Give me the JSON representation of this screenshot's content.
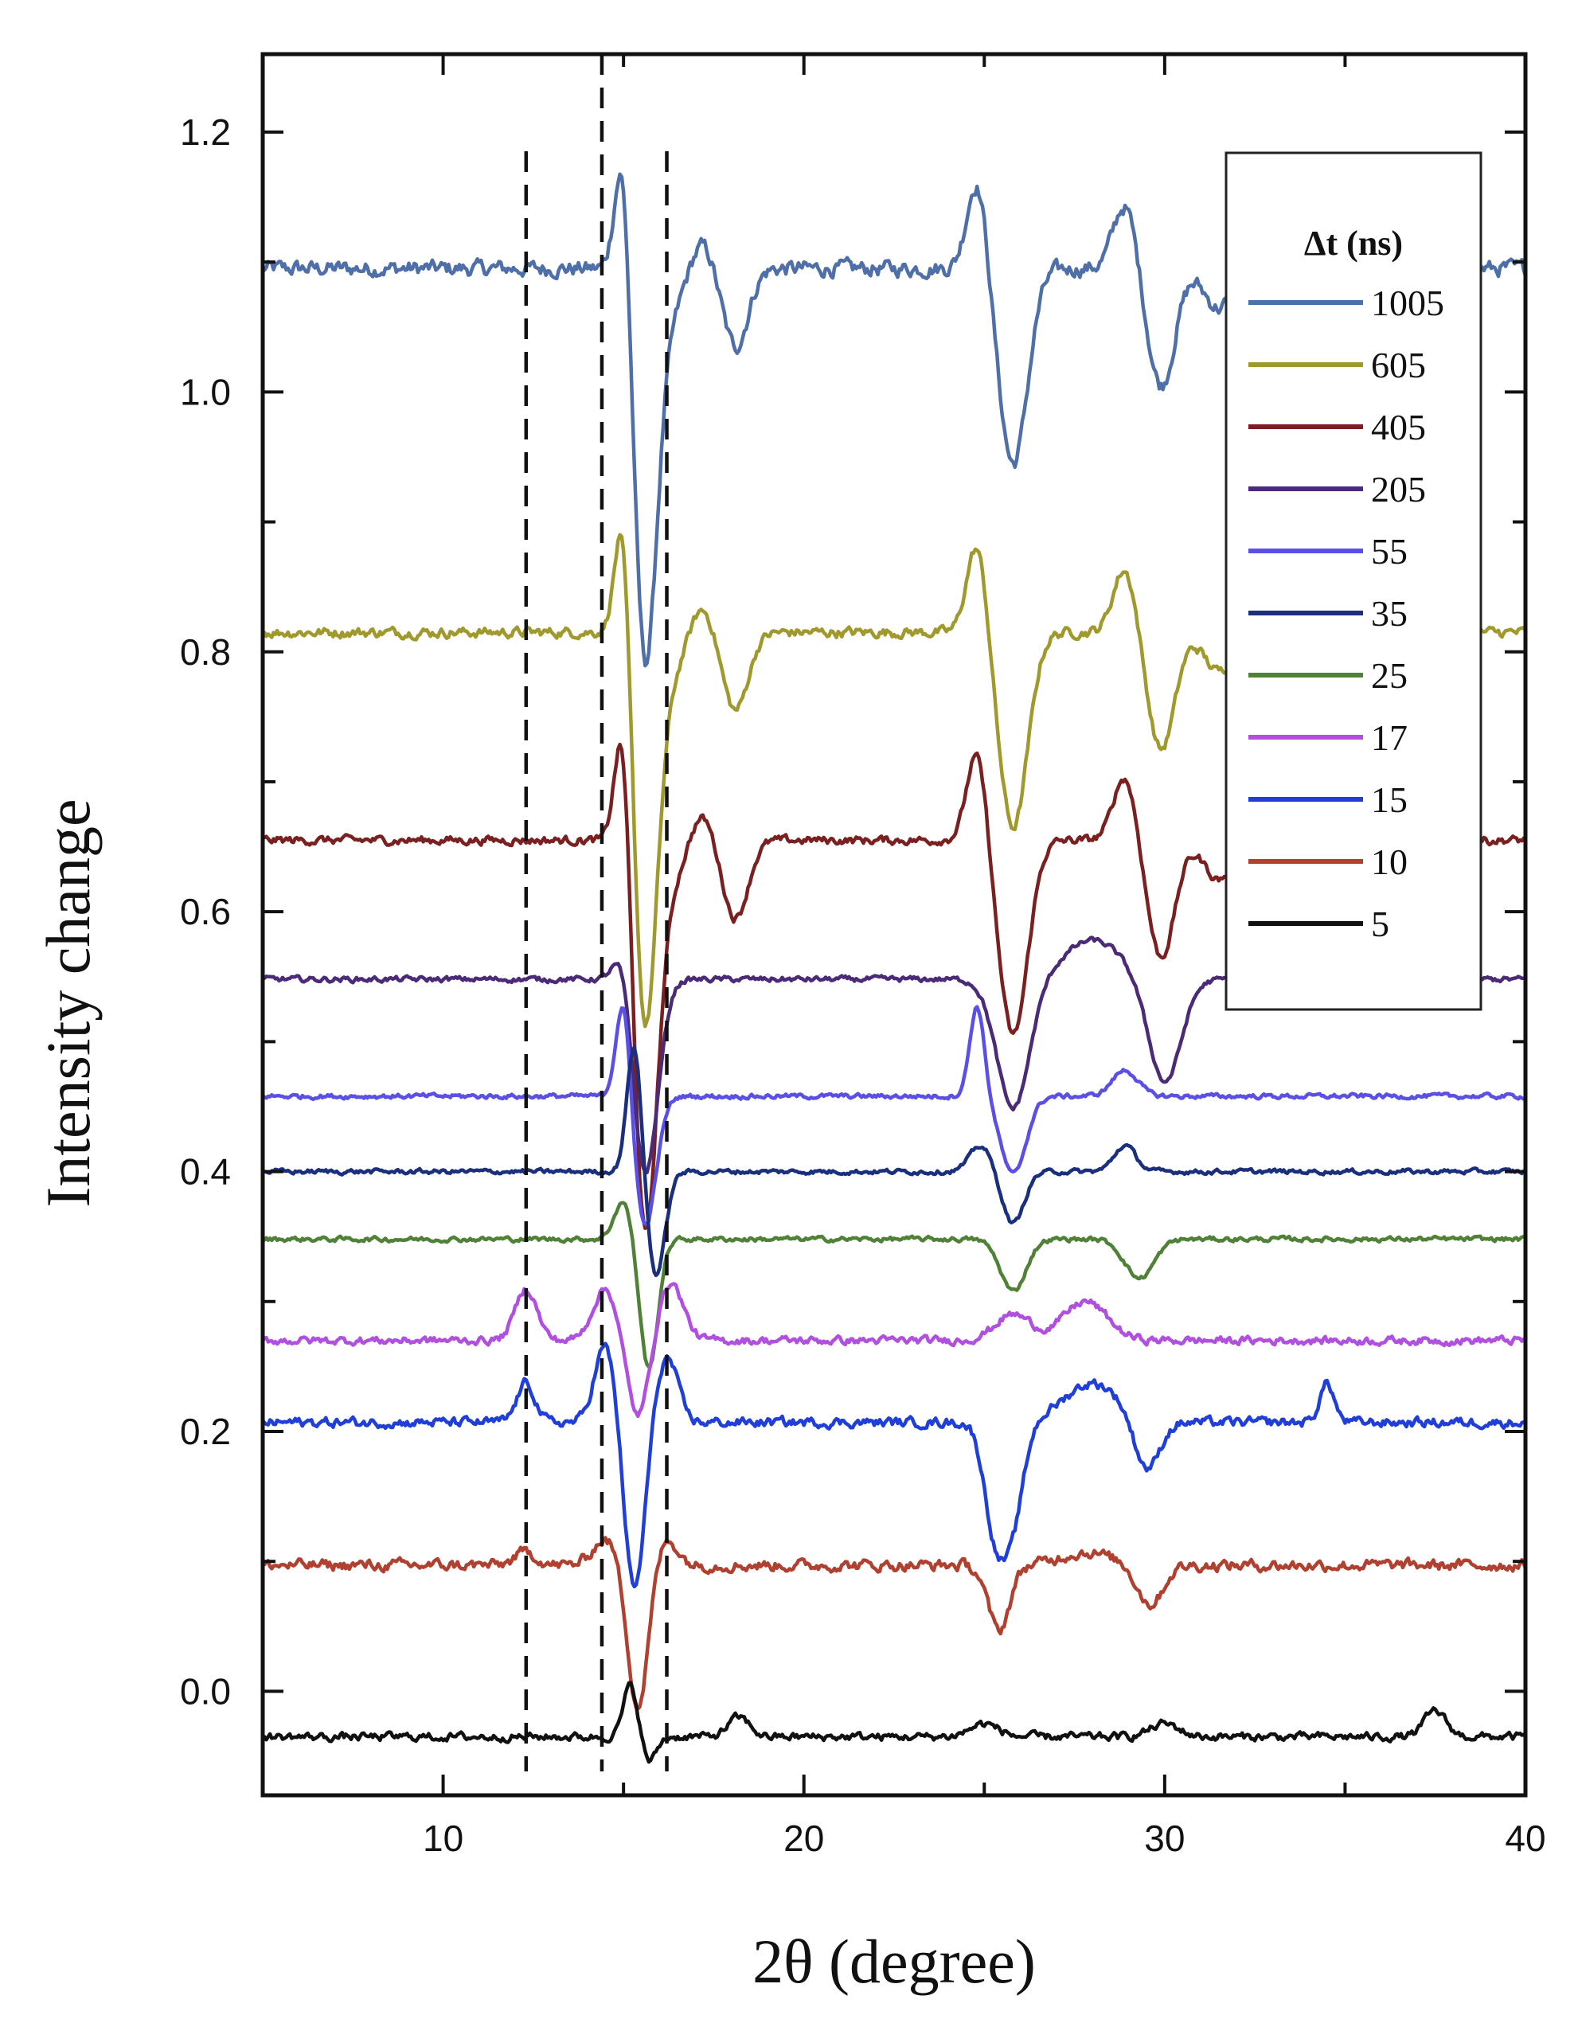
{
  "chart_data": {
    "type": "line",
    "xlabel": "2θ (degree)",
    "ylabel": "Intensity change",
    "xlim": [
      5,
      40
    ],
    "ylim": [
      -0.08,
      1.26
    ],
    "xticks": [
      10,
      20,
      30,
      40
    ],
    "xtick_labels": [
      "10",
      "20",
      "30",
      "40"
    ],
    "yticks": [
      0.0,
      0.2,
      0.4,
      0.6,
      0.8,
      1.0,
      1.2
    ],
    "ytick_labels": [
      "0.0",
      "0.2",
      "0.4",
      "0.6",
      "0.8",
      "1.0",
      "1.2"
    ],
    "grid": false,
    "vertical_dashed_lines_x": [
      12.3,
      14.4,
      16.2
    ],
    "legend": {
      "title": "Δt (ns)",
      "placement": "top-right"
    },
    "series": [
      {
        "name": "1005",
        "color": "#4f6fa8",
        "baseline": 1.095,
        "amp": 1.0,
        "features": [
          [
            12.3,
            0.0,
            0.5
          ],
          [
            14.5,
            0.0,
            0.5
          ],
          [
            15.0,
            0.115,
            0.22
          ],
          [
            15.6,
            -0.3,
            0.33
          ],
          [
            16.3,
            -0.03,
            0.35
          ],
          [
            17.2,
            0.02,
            0.3
          ],
          [
            18.1,
            -0.06,
            0.35
          ],
          [
            24.8,
            0.07,
            0.28
          ],
          [
            25.8,
            -0.15,
            0.4
          ],
          [
            28.9,
            0.05,
            0.32
          ],
          [
            29.9,
            -0.09,
            0.38
          ],
          [
            31.5,
            -0.03,
            0.4
          ]
        ]
      },
      {
        "name": "605",
        "color": "#a09a2e",
        "baseline": 0.815,
        "amp": 0.64,
        "features": [
          [
            15.0,
            0.115,
            0.22
          ],
          [
            15.6,
            -0.3,
            0.33
          ],
          [
            16.3,
            -0.03,
            0.35
          ],
          [
            17.2,
            0.02,
            0.3
          ],
          [
            18.1,
            -0.06,
            0.35
          ],
          [
            24.8,
            0.07,
            0.28
          ],
          [
            25.8,
            -0.15,
            0.4
          ],
          [
            28.9,
            0.05,
            0.32
          ],
          [
            29.9,
            -0.09,
            0.38
          ],
          [
            31.5,
            -0.03,
            0.4
          ]
        ]
      },
      {
        "name": "405",
        "color": "#7a2020",
        "baseline": 0.655,
        "amp": 0.53,
        "features": [
          [
            15.0,
            0.115,
            0.22
          ],
          [
            15.6,
            -0.3,
            0.33
          ],
          [
            16.3,
            -0.03,
            0.35
          ],
          [
            17.2,
            0.02,
            0.3
          ],
          [
            18.1,
            -0.06,
            0.35
          ],
          [
            24.8,
            0.07,
            0.28
          ],
          [
            25.8,
            -0.15,
            0.4
          ],
          [
            28.9,
            0.05,
            0.32
          ],
          [
            29.9,
            -0.09,
            0.38
          ],
          [
            31.5,
            -0.03,
            0.4
          ]
        ]
      },
      {
        "name": "205",
        "color": "#4b2a78",
        "baseline": 0.548,
        "amp": 0.35,
        "features": [
          [
            15.0,
            0.03,
            0.25
          ],
          [
            15.6,
            -0.15,
            0.35
          ],
          [
            25.8,
            -0.1,
            0.45
          ],
          [
            28.0,
            0.03,
            0.8
          ],
          [
            30.0,
            -0.08,
            0.45
          ]
        ]
      },
      {
        "name": "55",
        "color": "#5a4fe6",
        "baseline": 0.458,
        "amp": 0.3,
        "features": [
          [
            15.0,
            0.08,
            0.2
          ],
          [
            15.6,
            -0.1,
            0.3
          ],
          [
            24.8,
            0.07,
            0.2
          ],
          [
            25.8,
            -0.06,
            0.35
          ],
          [
            28.9,
            0.02,
            0.35
          ]
        ]
      },
      {
        "name": "35",
        "color": "#1a2f7e",
        "baseline": 0.4,
        "amp": 0.3,
        "features": [
          [
            15.3,
            0.1,
            0.2
          ],
          [
            15.9,
            -0.08,
            0.25
          ],
          [
            24.9,
            0.02,
            0.3
          ],
          [
            25.8,
            -0.04,
            0.3
          ],
          [
            28.9,
            0.02,
            0.3
          ]
        ]
      },
      {
        "name": "25",
        "color": "#4f8236",
        "baseline": 0.348,
        "amp": 0.3,
        "features": [
          [
            15.0,
            0.03,
            0.25
          ],
          [
            15.7,
            -0.1,
            0.25
          ],
          [
            25.8,
            -0.04,
            0.35
          ],
          [
            29.3,
            -0.03,
            0.4
          ]
        ]
      },
      {
        "name": "17",
        "color": "#b04fe0",
        "baseline": 0.27,
        "amp": 0.5,
        "features": [
          [
            12.3,
            0.04,
            0.3
          ],
          [
            14.5,
            0.04,
            0.35
          ],
          [
            15.4,
            -0.06,
            0.3
          ],
          [
            16.3,
            0.045,
            0.35
          ],
          [
            25.8,
            0.02,
            0.5
          ],
          [
            27.8,
            0.03,
            0.6
          ]
        ]
      },
      {
        "name": "15",
        "color": "#1f3fd8",
        "baseline": 0.207,
        "amp": 0.6,
        "features": [
          [
            12.3,
            0.03,
            0.25
          ],
          [
            14.5,
            0.06,
            0.3
          ],
          [
            15.3,
            -0.13,
            0.28
          ],
          [
            16.2,
            0.05,
            0.3
          ],
          [
            25.3,
            -0.08,
            0.3
          ],
          [
            25.8,
            -0.07,
            0.3
          ],
          [
            28.0,
            0.03,
            0.8
          ],
          [
            29.5,
            -0.04,
            0.35
          ],
          [
            34.5,
            0.03,
            0.2
          ]
        ]
      },
      {
        "name": "10",
        "color": "#b04030",
        "baseline": 0.097,
        "amp": 0.7,
        "features": [
          [
            12.3,
            0.01,
            0.3
          ],
          [
            14.5,
            0.02,
            0.35
          ],
          [
            15.4,
            -0.11,
            0.28
          ],
          [
            16.2,
            0.02,
            0.3
          ],
          [
            25.4,
            -0.05,
            0.3
          ],
          [
            27.8,
            0.01,
            0.7
          ],
          [
            29.6,
            -0.03,
            0.35
          ]
        ]
      },
      {
        "name": "5",
        "color": "#111111",
        "baseline": -0.035,
        "amp": 0.5,
        "features": [
          [
            15.2,
            0.04,
            0.2
          ],
          [
            15.7,
            -0.02,
            0.2
          ],
          [
            18.2,
            0.015,
            0.3
          ],
          [
            25.0,
            0.01,
            0.4
          ],
          [
            30.0,
            0.01,
            0.4
          ],
          [
            37.5,
            0.02,
            0.3
          ]
        ]
      }
    ]
  }
}
